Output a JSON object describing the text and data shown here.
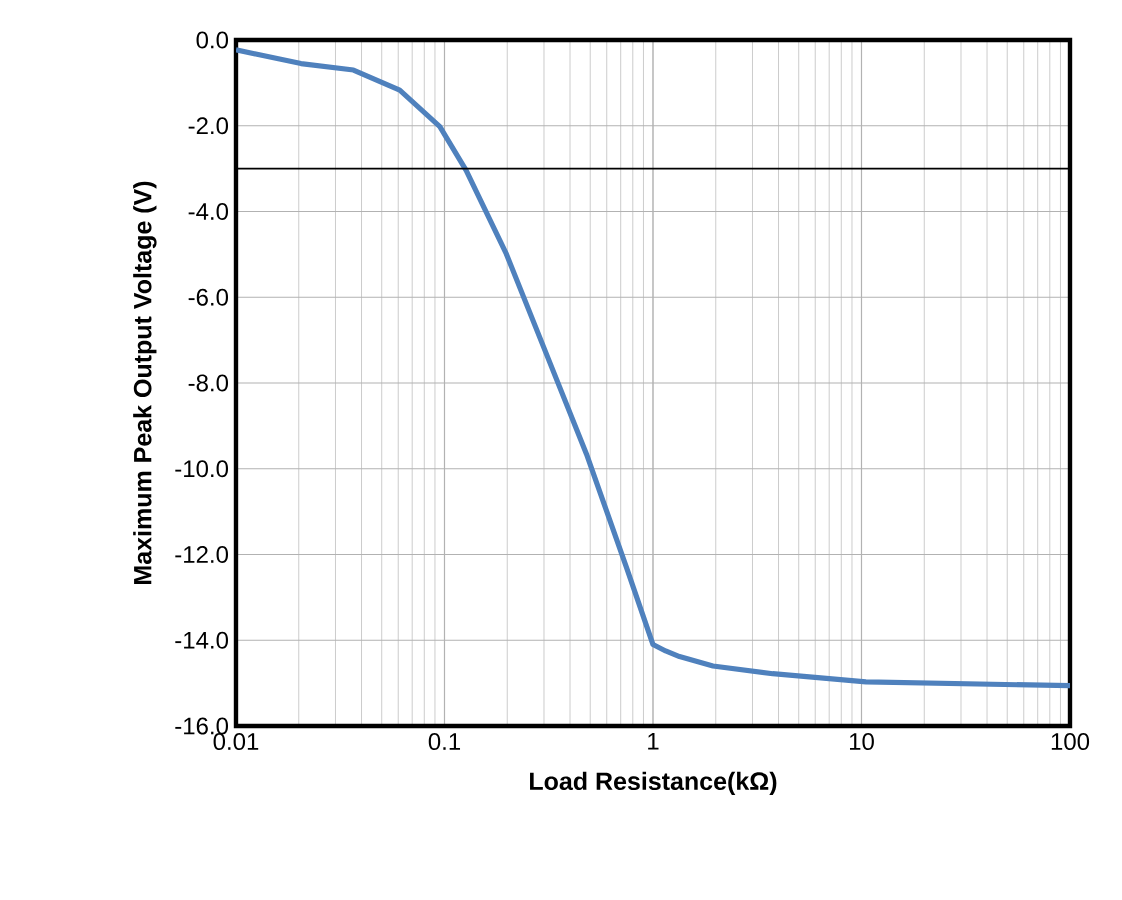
{
  "chart_data": {
    "type": "line",
    "xlabel": "Load Resistance(kΩ)",
    "ylabel": "Maximum Peak Output Voltage (V)",
    "log": "x",
    "grid": true,
    "xlim": [
      0.01,
      100
    ],
    "xticks": [
      0.01,
      0.1,
      1,
      10,
      100
    ],
    "ylim": [
      -16,
      0
    ],
    "yticks": [
      {
        "value": 0,
        "label": "0.0"
      },
      {
        "value": -2,
        "label": "-2.0"
      },
      {
        "value": -4,
        "label": "-4.0"
      },
      {
        "value": -6,
        "label": "-6.0"
      },
      {
        "value": -8,
        "label": "-8.0"
      },
      {
        "value": -10,
        "label": "-10.0"
      },
      {
        "value": -12,
        "label": "-12.0"
      },
      {
        "value": -14,
        "label": "-14.0"
      },
      {
        "value": -16,
        "label": "-16.0"
      }
    ],
    "ref_lines": [
      {
        "axis": "y",
        "value": -3,
        "color": "#000000"
      }
    ],
    "x": [
      0.01,
      0.0205,
      0.0366,
      0.061,
      0.095,
      0.127,
      0.198,
      0.308,
      0.48,
      0.746,
      1.0,
      1.15,
      1.34,
      1.94,
      3.75,
      10.5,
      100
    ],
    "series": [
      {
        "color": "#4f81bd",
        "values": [
          -0.23,
          -0.55,
          -0.7,
          -1.17,
          -2.02,
          -3.04,
          -4.99,
          -7.32,
          -9.66,
          -12.3,
          -14.1,
          -14.25,
          -14.38,
          -14.6,
          -14.78,
          -14.97,
          -15.06
        ]
      }
    ]
  }
}
